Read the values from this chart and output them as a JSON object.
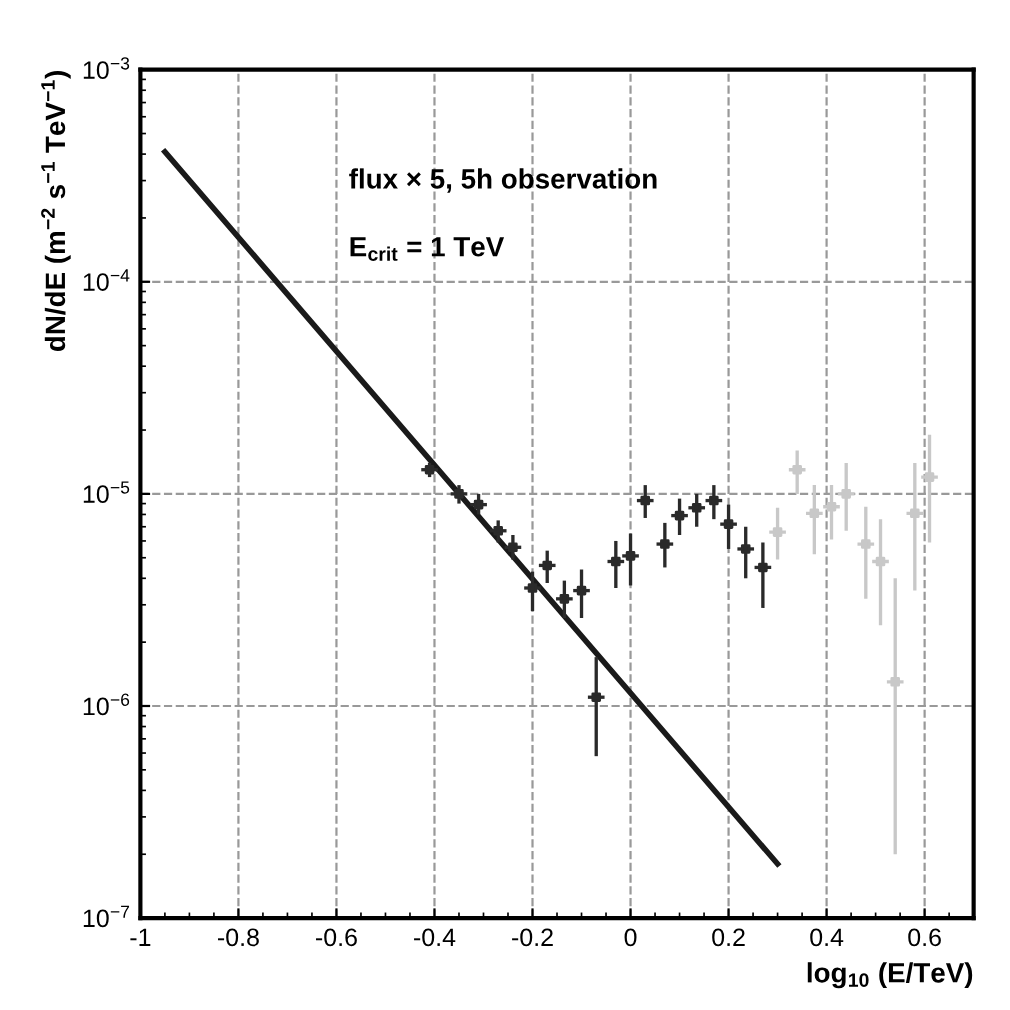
{
  "chart_data": {
    "type": "scatter",
    "xlabel": "log$_{10}$ (E/TeV)",
    "ylabel": "dN/dE (m$^{−2}$ s$^{−1}$ TeV$^{−1}$)",
    "annotations": [
      "flux × 5, 5h observation",
      "E$_{crit}$ = 1 TeV"
    ],
    "log": "y",
    "grid": true,
    "xlim": [
      -1,
      0.7
    ],
    "xticks": [
      -1,
      -0.8,
      -0.6,
      -0.4,
      -0.2,
      0,
      0.2,
      0.4,
      0.6
    ],
    "ylim": [
      1e-07,
      0.001
    ],
    "yticks": [
      {
        "value": 1e-07,
        "label": "10$^{−7}$"
      },
      {
        "value": 1e-06,
        "label": "10$^{−6}$"
      },
      {
        "value": 1e-05,
        "label": "10$^{−5}$"
      },
      {
        "value": 0.0001,
        "label": "10$^{−4}$"
      },
      {
        "value": 0.001,
        "label": "10$^{−3}$"
      }
    ],
    "series": [
      {
        "type": "line",
        "color": "#1a1a1a",
        "line_style": "solid",
        "x": [
          -0.95,
          0.3
        ],
        "values": [
          0.00041,
          1.8e-07
        ]
      },
      {
        "color": "#2a2a2a",
        "x": [
          -0.41,
          -0.35,
          -0.31,
          -0.27,
          -0.24,
          -0.2,
          -0.17,
          -0.135,
          -0.1,
          -0.07,
          -0.03,
          0.0,
          0.03,
          0.07,
          0.1,
          0.135,
          0.17,
          0.2,
          0.235,
          0.27
        ],
        "values": [
          1.3e-05,
          1e-05,
          8.9e-06,
          6.7e-06,
          5.6e-06,
          3.6e-06,
          4.6e-06,
          3.2e-06,
          3.5e-06,
          1.1e-06,
          4.8e-06,
          5.1e-06,
          9.3e-06,
          5.8e-06,
          7.9e-06,
          8.6e-06,
          9.3e-06,
          7.2e-06,
          5.5e-06,
          4.5e-06
        ],
        "errors": [
          [
            1.2e-05,
            1.4e-05
          ],
          [
            9e-06,
            1.1e-05
          ],
          [
            8e-06,
            1e-05
          ],
          [
            5.9e-06,
            7.5e-06
          ],
          [
            4.9e-06,
            6.4e-06
          ],
          [
            2.8e-06,
            4.3e-06
          ],
          [
            3.8e-06,
            5.4e-06
          ],
          [
            2.6e-06,
            3.9e-06
          ],
          [
            2.6e-06,
            4.4e-06
          ],
          [
            5.8e-07,
            1.7e-06
          ],
          [
            3.6e-06,
            6e-06
          ],
          [
            3.7e-06,
            6.5e-06
          ],
          [
            7.7e-06,
            1.1e-05
          ],
          [
            4.5e-06,
            7.3e-06
          ],
          [
            6.4e-06,
            9.5e-06
          ],
          [
            7e-06,
            1e-05
          ],
          [
            7.6e-06,
            1.1e-05
          ],
          [
            5.5e-06,
            8.9e-06
          ],
          [
            4e-06,
            7e-06
          ],
          [
            2.9e-06,
            5.9e-06
          ]
        ],
        "xerrors": [
          0.017,
          0.017,
          0.017,
          0.017,
          0.017,
          0.017,
          0.017,
          0.017,
          0.017,
          0.017,
          0.017,
          0.017,
          0.017,
          0.017,
          0.017,
          0.017,
          0.017,
          0.017,
          0.017,
          0.017
        ]
      },
      {
        "color": "#c8c8c8",
        "x": [
          0.3,
          0.34,
          0.375,
          0.41,
          0.44,
          0.48,
          0.51,
          0.54,
          0.58,
          0.61
        ],
        "values": [
          6.6e-06,
          1.3e-05,
          8.1e-06,
          8.7e-06,
          1e-05,
          5.8e-06,
          4.8e-06,
          1.3e-06,
          8.1e-06,
          1.2e-05
        ],
        "errors": [
          [
            4.9e-06,
            8.6e-06
          ],
          [
            1e-05,
            1.6e-05
          ],
          [
            5.2e-06,
            1.1e-05
          ],
          [
            6.1e-06,
            1.1e-05
          ],
          [
            6.7e-06,
            1.4e-05
          ],
          [
            3.2e-06,
            8.7e-06
          ],
          [
            2.4e-06,
            7.6e-06
          ],
          [
            2e-07,
            4e-06
          ],
          [
            3.5e-06,
            1.4e-05
          ],
          [
            5.9e-06,
            1.9e-05
          ]
        ],
        "xerrors": [
          0.017,
          0.017,
          0.017,
          0.017,
          0.017,
          0.017,
          0.017,
          0.017,
          0.017,
          0.017
        ]
      }
    ]
  }
}
